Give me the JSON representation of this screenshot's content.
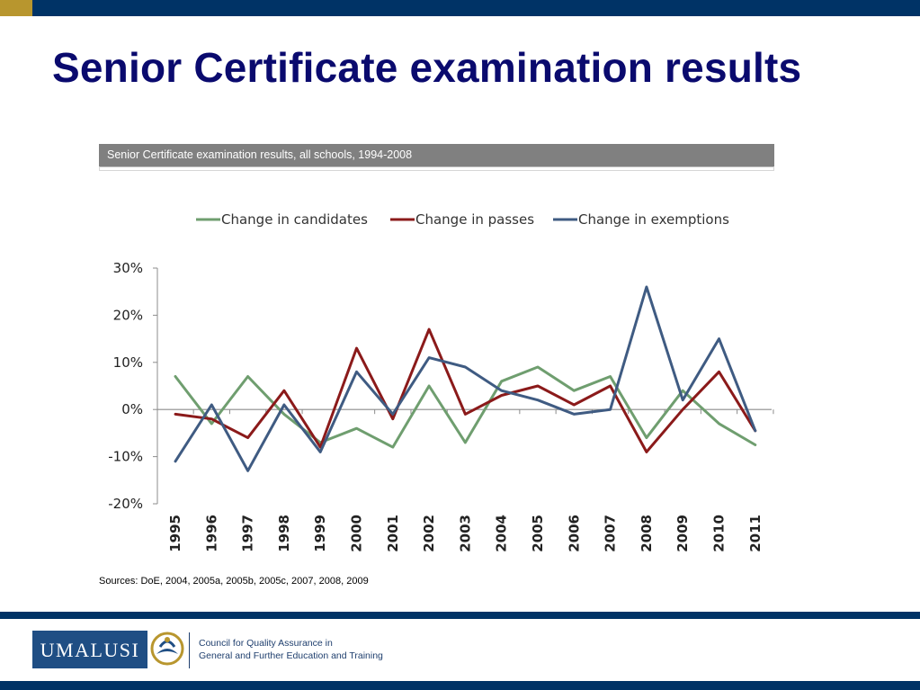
{
  "slide": {
    "title": "Senior Certificate examination results",
    "chart_header": "Senior Certificate examination results, all schools, 1994-2008",
    "sources": "Sources: DoE, 2004, 2005a, 2005b, 2005c, 2007, 2008, 2009"
  },
  "footer": {
    "logo_text": "UMALUSI",
    "council_line1": "Council for Quality Assurance in",
    "council_line2": "General and Further Education and Training"
  },
  "colors": {
    "candidates": "#6f9e6f",
    "passes": "#8b1a1a",
    "exemptions": "#3f5b82",
    "brand_navy": "#003366",
    "title": "#0a0a6e"
  },
  "chart_data": {
    "type": "line",
    "title": "",
    "xlabel": "",
    "ylabel": "",
    "x": [
      "1995",
      "1996",
      "1997",
      "1998",
      "1999",
      "2000",
      "2001",
      "2002",
      "2003",
      "2004",
      "2005",
      "2006",
      "2007",
      "2008",
      "2009",
      "2010",
      "2011"
    ],
    "ylim": [
      -20,
      30
    ],
    "yticks": [
      30,
      20,
      10,
      0,
      -10,
      -20
    ],
    "ytick_labels": [
      "30%",
      "20%",
      "10%",
      "0%",
      "-10%",
      "-20%"
    ],
    "legend_position": "top",
    "series": [
      {
        "name": "Change in candidates",
        "color": "#6f9e6f",
        "values": [
          7,
          -3,
          7,
          -1,
          -7,
          -4,
          -8,
          5,
          -7,
          6,
          9,
          4,
          7,
          -6,
          4,
          -3,
          -7.5
        ]
      },
      {
        "name": "Change in passes",
        "color": "#8b1a1a",
        "values": [
          -1,
          -2,
          -6,
          4,
          -8,
          13,
          -2,
          17,
          -1,
          3,
          5,
          1,
          5,
          -9,
          0,
          8,
          -4.5
        ]
      },
      {
        "name": "Change in exemptions",
        "color": "#3f5b82",
        "values": [
          -11,
          1,
          -13,
          1,
          -9,
          8,
          -1,
          11,
          9,
          4,
          2,
          -1,
          0,
          26,
          2,
          15,
          -4.5
        ]
      }
    ]
  }
}
